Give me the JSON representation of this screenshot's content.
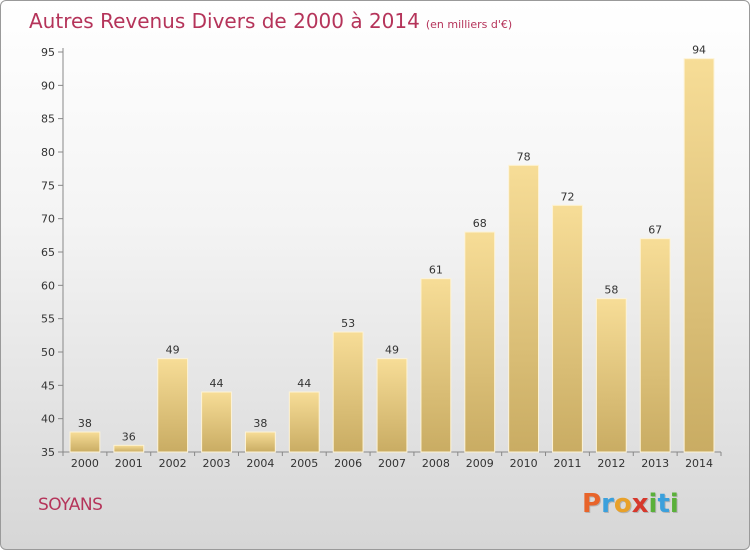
{
  "chart_data": {
    "type": "bar",
    "title": "Autres Revenus Divers de 2000 à 2014",
    "subtitle": "(en milliers d'€)",
    "categories": [
      "2000",
      "2001",
      "2002",
      "2003",
      "2004",
      "2005",
      "2006",
      "2007",
      "2008",
      "2009",
      "2010",
      "2011",
      "2012",
      "2013",
      "2014"
    ],
    "values": [
      38,
      36,
      49,
      44,
      38,
      44,
      53,
      49,
      61,
      68,
      78,
      72,
      58,
      67,
      94
    ],
    "ylim": [
      35,
      95
    ],
    "yticks": [
      35,
      40,
      45,
      50,
      55,
      60,
      65,
      70,
      75,
      80,
      85,
      90,
      95
    ],
    "grid": false,
    "legend": "none",
    "colors": {
      "bar_light": "#f7dd97",
      "bar_dark": "#c9ac63",
      "title": "#b5345a"
    }
  },
  "footer": {
    "commune": "SOYANS",
    "brand_letters": [
      {
        "ch": "P",
        "color": "#e8642a"
      },
      {
        "ch": "r",
        "color": "#3aa0dc"
      },
      {
        "ch": "o",
        "color": "#e8a12a"
      },
      {
        "ch": "x",
        "color": "#d6382c"
      },
      {
        "ch": "i",
        "color": "#5ab03a"
      },
      {
        "ch": "t",
        "color": "#3aa0dc"
      },
      {
        "ch": "i",
        "color": "#5ab03a"
      }
    ]
  }
}
